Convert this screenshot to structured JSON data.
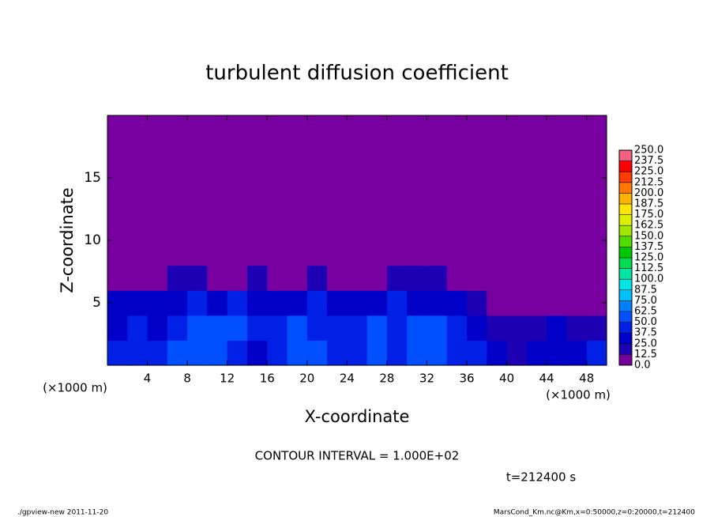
{
  "chart_data": {
    "type": "heatmap",
    "title": "turbulent diffusion coefficient",
    "x_label": "X-coordinate",
    "y_label": "Z-coordinate",
    "x_unit": "(×1000 m)",
    "y_unit": "(×1000 m)",
    "xlim": [
      0,
      50
    ],
    "xticks": [
      4,
      8,
      12,
      16,
      20,
      24,
      28,
      32,
      36,
      40,
      44,
      48
    ],
    "ylim": [
      0,
      20
    ],
    "yticks": [
      5,
      10,
      15
    ],
    "values": [
      [
        40,
        45,
        40,
        50,
        55,
        60,
        45,
        35,
        40,
        55,
        50,
        40,
        45,
        50,
        40,
        55,
        60,
        45,
        40,
        25,
        20,
        30,
        35,
        30,
        40
      ],
      [
        35,
        40,
        35,
        45,
        50,
        55,
        50,
        40,
        45,
        50,
        45,
        40,
        45,
        50,
        45,
        50,
        55,
        40,
        35,
        15,
        15,
        20,
        25,
        15,
        20
      ],
      [
        25,
        30,
        30,
        35,
        40,
        35,
        40,
        35,
        30,
        35,
        40,
        35,
        30,
        35,
        40,
        35,
        35,
        30,
        20,
        5,
        5,
        10,
        5,
        5,
        5
      ],
      [
        0,
        0,
        5,
        15,
        15,
        5,
        10,
        15,
        10,
        5,
        15,
        10,
        5,
        10,
        15,
        15,
        20,
        10,
        5,
        0,
        0,
        0,
        0,
        0,
        0
      ],
      [
        0,
        0,
        0,
        0,
        0,
        0,
        0,
        0,
        0,
        0,
        0,
        0,
        0,
        0,
        0,
        0,
        0,
        0,
        0,
        0,
        0,
        0,
        0,
        0,
        0
      ],
      [
        0,
        0,
        0,
        0,
        0,
        0,
        0,
        0,
        0,
        0,
        0,
        0,
        0,
        0,
        0,
        0,
        0,
        0,
        0,
        0,
        0,
        0,
        0,
        0,
        0
      ],
      [
        0,
        0,
        0,
        0,
        0,
        0,
        0,
        0,
        0,
        0,
        0,
        0,
        0,
        0,
        0,
        0,
        0,
        0,
        0,
        0,
        0,
        0,
        0,
        0,
        0
      ],
      [
        0,
        0,
        0,
        0,
        0,
        0,
        0,
        0,
        0,
        0,
        0,
        0,
        0,
        0,
        0,
        0,
        0,
        0,
        0,
        0,
        0,
        0,
        0,
        0,
        0
      ],
      [
        0,
        0,
        0,
        0,
        0,
        0,
        0,
        0,
        0,
        0,
        0,
        0,
        0,
        0,
        0,
        0,
        0,
        0,
        0,
        0,
        0,
        0,
        0,
        0,
        0
      ],
      [
        0,
        0,
        0,
        0,
        0,
        0,
        0,
        0,
        0,
        0,
        0,
        0,
        0,
        0,
        0,
        0,
        0,
        0,
        0,
        0,
        0,
        0,
        0,
        0,
        0
      ]
    ],
    "colorbar_ticks": [
      {
        "value": 0,
        "label": "0.0"
      },
      {
        "value": 12.5,
        "label": "12.5"
      },
      {
        "value": 25,
        "label": "25.0"
      },
      {
        "value": 37.5,
        "label": "37.5"
      },
      {
        "value": 50,
        "label": "50.0"
      },
      {
        "value": 62.5,
        "label": "62.5"
      },
      {
        "value": 75,
        "label": "75.0"
      },
      {
        "value": 87.5,
        "label": "87.5"
      },
      {
        "value": 100,
        "label": "100.0"
      },
      {
        "value": 112.5,
        "label": "112.5"
      },
      {
        "value": 125,
        "label": "125.0"
      },
      {
        "value": 137.5,
        "label": "137.5"
      },
      {
        "value": 150,
        "label": "150.0"
      },
      {
        "value": 162.5,
        "label": "162.5"
      },
      {
        "value": 175,
        "label": "175.0"
      },
      {
        "value": 187.5,
        "label": "187.5"
      },
      {
        "value": 200,
        "label": "200.0"
      },
      {
        "value": 212.5,
        "label": "212.5"
      },
      {
        "value": 225,
        "label": "225.0"
      },
      {
        "value": 237.5,
        "label": "237.5"
      },
      {
        "value": 250,
        "label": "250.0"
      }
    ],
    "colors": [
      "#7800a0",
      "#1e00b4",
      "#0000c8",
      "#0020e6",
      "#0050ff",
      "#0080ff",
      "#00c0ff",
      "#00e6e6",
      "#00e6a0",
      "#00dc50",
      "#00c800",
      "#50dc00",
      "#a0e600",
      "#dcf000",
      "#ffe600",
      "#ffb400",
      "#ff7800",
      "#ff3c00",
      "#ff0000",
      "#f06080"
    ],
    "annotations": [
      "CONTOUR INTERVAL = 1.000E+02",
      "t=212400 s"
    ],
    "footer_left": "./gpview-new  2011-11-20",
    "footer_right": "MarsCond_Km.nc@Km,x=0:50000,z=0:20000,t=212400"
  }
}
